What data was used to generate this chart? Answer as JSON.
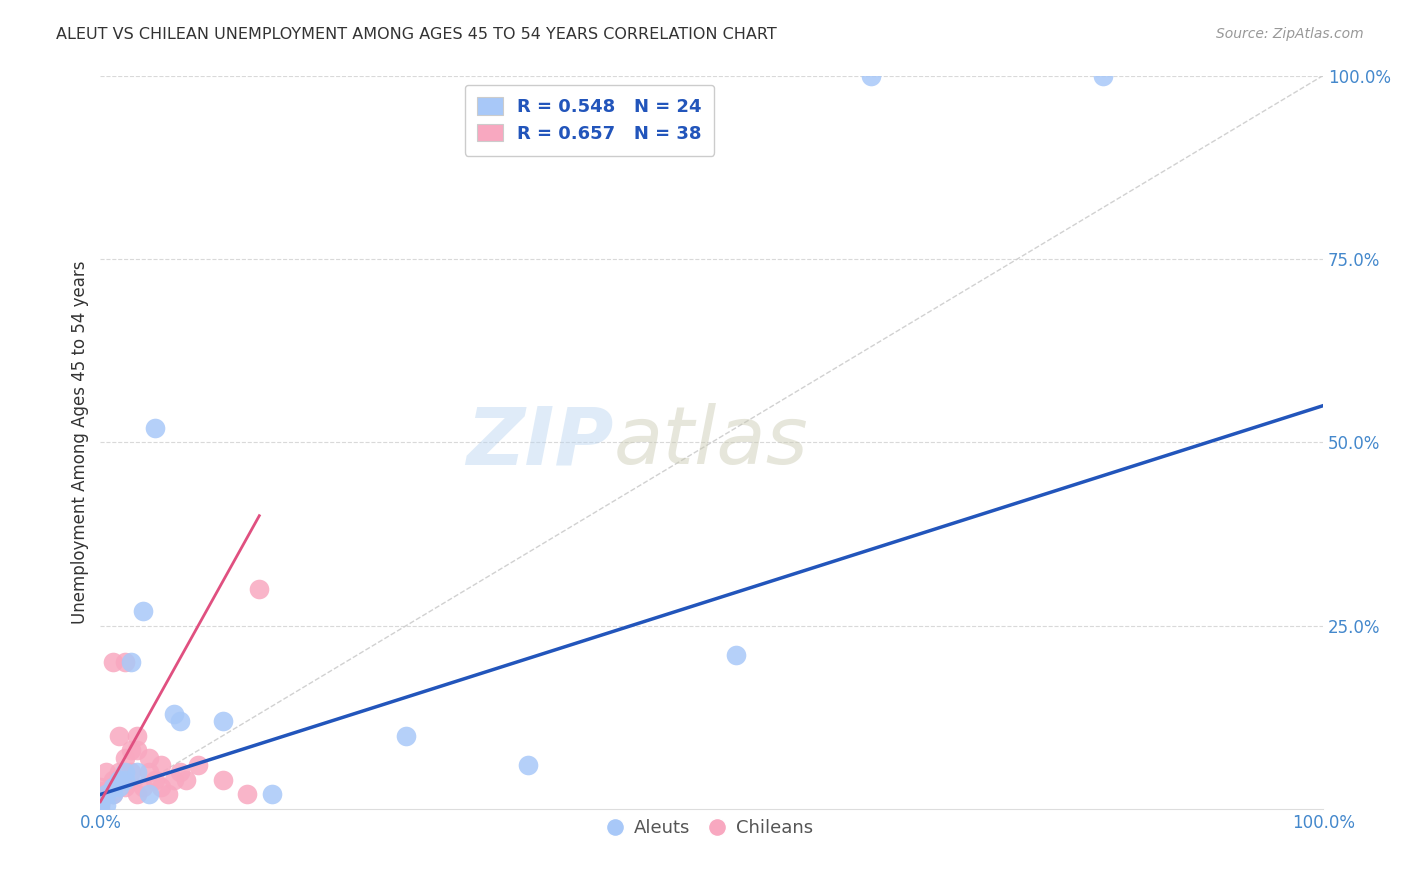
{
  "title": "ALEUT VS CHILEAN UNEMPLOYMENT AMONG AGES 45 TO 54 YEARS CORRELATION CHART",
  "source": "Source: ZipAtlas.com",
  "ylabel": "Unemployment Among Ages 45 to 54 years",
  "xlim": [
    0,
    1.0
  ],
  "ylim": [
    0,
    1.0
  ],
  "xtick_positions": [
    0.0,
    1.0
  ],
  "xtick_labels": [
    "0.0%",
    "100.0%"
  ],
  "ytick_positions": [
    0.25,
    0.5,
    0.75,
    1.0
  ],
  "ytick_labels": [
    "25.0%",
    "50.0%",
    "75.0%",
    "100.0%"
  ],
  "aleut_R": 0.548,
  "aleut_N": 24,
  "chilean_R": 0.657,
  "chilean_N": 38,
  "aleut_color": "#a8c8f8",
  "chilean_color": "#f8a8c0",
  "aleut_line_color": "#2255bb",
  "chilean_line_color": "#e05080",
  "diagonal_color": "#cccccc",
  "watermark_zip": "ZIP",
  "watermark_atlas": "atlas",
  "aleut_x": [
    0.0,
    0.0,
    0.005,
    0.005,
    0.01,
    0.01,
    0.015,
    0.015,
    0.02,
    0.02,
    0.025,
    0.03,
    0.035,
    0.04,
    0.045,
    0.06,
    0.065,
    0.1,
    0.14,
    0.25,
    0.35,
    0.52,
    0.63,
    0.82
  ],
  "aleut_y": [
    0.005,
    0.01,
    0.005,
    0.02,
    0.02,
    0.03,
    0.03,
    0.04,
    0.04,
    0.05,
    0.2,
    0.05,
    0.27,
    0.02,
    0.52,
    0.13,
    0.12,
    0.12,
    0.02,
    0.1,
    0.06,
    0.21,
    1.0,
    1.0
  ],
  "chilean_x": [
    0.0,
    0.0,
    0.0,
    0.0,
    0.0,
    0.0,
    0.0,
    0.0,
    0.0,
    0.005,
    0.005,
    0.01,
    0.01,
    0.01,
    0.015,
    0.015,
    0.02,
    0.02,
    0.02,
    0.025,
    0.025,
    0.03,
    0.03,
    0.03,
    0.035,
    0.04,
    0.04,
    0.045,
    0.05,
    0.05,
    0.055,
    0.06,
    0.065,
    0.07,
    0.08,
    0.1,
    0.12,
    0.13
  ],
  "chilean_y": [
    0.0,
    0.005,
    0.01,
    0.01,
    0.015,
    0.02,
    0.02,
    0.025,
    0.03,
    0.02,
    0.05,
    0.02,
    0.04,
    0.2,
    0.05,
    0.1,
    0.03,
    0.07,
    0.2,
    0.05,
    0.08,
    0.02,
    0.08,
    0.1,
    0.03,
    0.05,
    0.07,
    0.04,
    0.03,
    0.06,
    0.02,
    0.04,
    0.05,
    0.04,
    0.06,
    0.04,
    0.02,
    0.3
  ],
  "aleut_line_x": [
    0.0,
    1.0
  ],
  "aleut_line_y": [
    0.02,
    0.55
  ],
  "chilean_line_x": [
    0.0,
    0.13
  ],
  "chilean_line_y": [
    0.01,
    0.4
  ]
}
